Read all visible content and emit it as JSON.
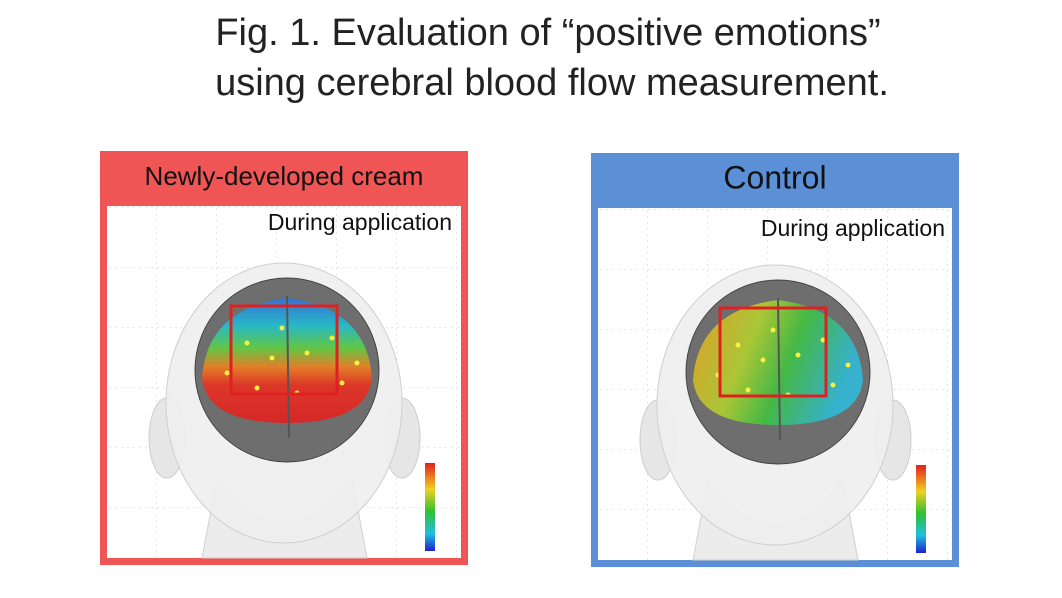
{
  "figure": {
    "title_lines": [
      "Fig. 1. Evaluation of “positive emotions”",
      "using cerebral blood flow measurement."
    ],
    "panels": [
      {
        "label": "Newly-developed cream",
        "subtitle": "During application"
      },
      {
        "label": "Control",
        "subtitle": "During application"
      }
    ]
  }
}
